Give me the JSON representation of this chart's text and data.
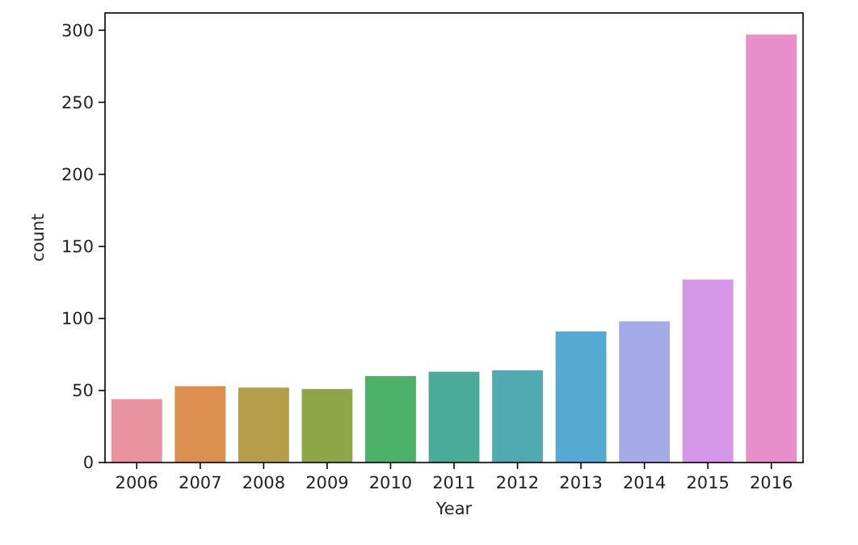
{
  "chart_data": {
    "type": "bar",
    "xlabel": "Year",
    "ylabel": "count",
    "categories": [
      "2006",
      "2007",
      "2008",
      "2009",
      "2010",
      "2011",
      "2012",
      "2013",
      "2014",
      "2015",
      "2016"
    ],
    "values": [
      44,
      53,
      52,
      51,
      60,
      63,
      64,
      91,
      98,
      127,
      297
    ],
    "colors": [
      "#e9939f",
      "#dd8f4f",
      "#b59d4a",
      "#8fa648",
      "#4cb26a",
      "#4aab98",
      "#4fabb1",
      "#54aad2",
      "#a6aae8",
      "#d696e7",
      "#e88fcb"
    ],
    "ylim": [
      0,
      312
    ],
    "yticks": [
      0,
      50,
      100,
      150,
      200,
      250,
      300
    ],
    "grid": false
  }
}
